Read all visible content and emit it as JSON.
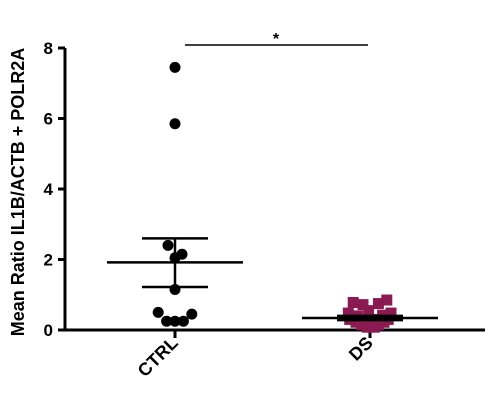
{
  "chart_data": {
    "type": "scatter",
    "ylabel": "Mean Ratio IL1B/ACTB + POLR2A",
    "ylim": [
      0,
      8
    ],
    "yticks": [
      "0",
      "2",
      "4",
      "6",
      "8"
    ],
    "categories": [
      "CTRL",
      "DS"
    ],
    "significance": "*",
    "colors": {
      "ctrl": "#000000",
      "ds": "#8B1A52",
      "axis": "#000000"
    },
    "series": [
      {
        "category": "CTRL",
        "marker": "circle",
        "points": [
          {
            "y": 7.45,
            "j": 0.0
          },
          {
            "y": 5.85,
            "j": 0.0
          },
          {
            "y": 2.4,
            "j": -0.5
          },
          {
            "y": 2.05,
            "j": 0.0
          },
          {
            "y": 2.15,
            "j": 0.5
          },
          {
            "y": 1.15,
            "j": 0.0
          },
          {
            "y": 0.5,
            "j": -1.2
          },
          {
            "y": 0.45,
            "j": 1.2
          },
          {
            "y": 0.25,
            "j": -0.6
          },
          {
            "y": 0.25,
            "j": 0.0
          },
          {
            "y": 0.25,
            "j": 0.6
          }
        ],
        "mean": 1.92,
        "sem_upper": 2.6,
        "sem_lower": 1.22
      },
      {
        "category": "DS",
        "marker": "square",
        "points": [
          {
            "y": 0.78,
            "j": -1.2
          },
          {
            "y": 0.72,
            "j": -0.5
          },
          {
            "y": 0.75,
            "j": 0.6
          },
          {
            "y": 0.85,
            "j": 1.2
          },
          {
            "y": 0.55,
            "j": -0.1
          },
          {
            "y": 0.48,
            "j": -1.55
          },
          {
            "y": 0.48,
            "j": 1.5
          },
          {
            "y": 0.4,
            "j": -0.9
          },
          {
            "y": 0.42,
            "j": 0.9
          },
          {
            "y": 0.3,
            "j": -1.45
          },
          {
            "y": 0.3,
            "j": -0.5
          },
          {
            "y": 0.3,
            "j": 0.4
          },
          {
            "y": 0.3,
            "j": 1.3
          },
          {
            "y": 0.22,
            "j": -1.0
          },
          {
            "y": 0.22,
            "j": 0.0
          },
          {
            "y": 0.22,
            "j": 1.0
          },
          {
            "y": 0.15,
            "j": -0.6
          },
          {
            "y": 0.15,
            "j": 0.6
          },
          {
            "y": 0.08,
            "j": -0.2
          },
          {
            "y": 0.08,
            "j": 0.3
          }
        ],
        "mean": 0.34,
        "sem_upper": 0.4,
        "sem_lower": 0.28
      }
    ]
  }
}
